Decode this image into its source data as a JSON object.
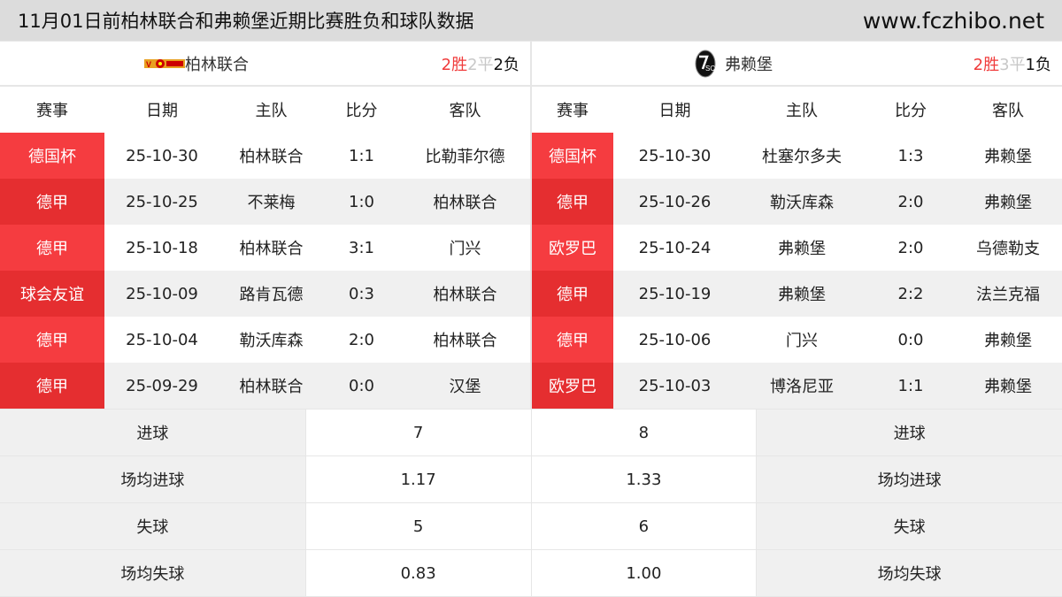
{
  "title": "11月01日前柏林联合和弗赖堡近期比赛胜负和球队数据",
  "site": "www.fczhibo.net",
  "headers": [
    "赛事",
    "日期",
    "主队",
    "比分",
    "客队"
  ],
  "left": {
    "team": "柏林联合",
    "logo_icon": "union-berlin-logo",
    "record": {
      "win": "2胜",
      "draw": "2平",
      "loss": "2负"
    },
    "matches": [
      [
        "德国杯",
        "25-10-30",
        "柏林联合",
        "1:1",
        "比勒菲尔德"
      ],
      [
        "德甲",
        "25-10-25",
        "不莱梅",
        "1:0",
        "柏林联合"
      ],
      [
        "德甲",
        "25-10-18",
        "柏林联合",
        "3:1",
        "门兴"
      ],
      [
        "球会友谊",
        "25-10-09",
        "路肯瓦德",
        "0:3",
        "柏林联合"
      ],
      [
        "德甲",
        "25-10-04",
        "勒沃库森",
        "2:0",
        "柏林联合"
      ],
      [
        "德甲",
        "25-09-29",
        "柏林联合",
        "0:0",
        "汉堡"
      ]
    ]
  },
  "right": {
    "team": "弗赖堡",
    "logo_icon": "freiburg-logo",
    "record": {
      "win": "2胜",
      "draw": "3平",
      "loss": "1负"
    },
    "matches": [
      [
        "德国杯",
        "25-10-30",
        "杜塞尔多夫",
        "1:3",
        "弗赖堡"
      ],
      [
        "德甲",
        "25-10-26",
        "勒沃库森",
        "2:0",
        "弗赖堡"
      ],
      [
        "欧罗巴",
        "25-10-24",
        "弗赖堡",
        "2:0",
        "乌德勒支"
      ],
      [
        "德甲",
        "25-10-19",
        "弗赖堡",
        "2:2",
        "法兰克福"
      ],
      [
        "德甲",
        "25-10-06",
        "门兴",
        "0:0",
        "弗赖堡"
      ],
      [
        "欧罗巴",
        "25-10-03",
        "博洛尼亚",
        "1:1",
        "弗赖堡"
      ]
    ]
  },
  "stats": [
    {
      "label": "进球",
      "left": "7",
      "right": "8"
    },
    {
      "label": "场均进球",
      "left": "1.17",
      "right": "1.33"
    },
    {
      "label": "失球",
      "left": "5",
      "right": "6"
    },
    {
      "label": "场均失球",
      "left": "0.83",
      "right": "1.00"
    }
  ],
  "colors": {
    "comp_light": "#f53c40",
    "comp_dark": "#e52e30",
    "win": "#f03c3c",
    "draw": "#c8c8c8"
  }
}
